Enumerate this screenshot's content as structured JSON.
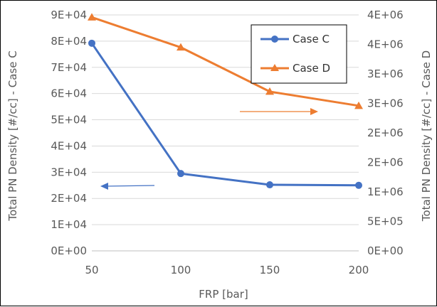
{
  "chart_data": {
    "type": "line",
    "xlabel": "FRP [bar]",
    "ylabel_left": "Total PN Density [#/cc] - Case C",
    "ylabel_right": "Total PN Density [#/cc] - Case D",
    "x": [
      50,
      100,
      150,
      200
    ],
    "x_ticks": [
      "50",
      "100",
      "150",
      "200"
    ],
    "y_left_ticks": [
      "0E+00",
      "1E+04",
      "2E+04",
      "3E+04",
      "4E+04",
      "5E+04",
      "6E+04",
      "7E+04",
      "8E+04",
      "9E+04"
    ],
    "y_right_ticks": [
      "0E+00",
      "5E+05",
      "1E+06",
      "2E+06",
      "2E+06",
      "3E+06",
      "3E+06",
      "4E+06",
      "4E+06"
    ],
    "ylim_left": [
      0,
      90000
    ],
    "ylim_right": [
      0,
      4000000
    ],
    "grid": true,
    "legend_position": "top-right",
    "series": [
      {
        "name": "Case C",
        "axis": "left",
        "color": "#4472C4",
        "marker": "circle",
        "values": [
          79200,
          29500,
          25200,
          25000
        ]
      },
      {
        "name": "Case D",
        "axis": "right",
        "color": "#ED7D31",
        "marker": "triangle",
        "values": [
          3960000,
          3450000,
          2700000,
          2460000
        ]
      }
    ],
    "annotations": [
      {
        "series": "Case C",
        "direction": "left",
        "meaning": "points to left axis"
      },
      {
        "series": "Case D",
        "direction": "right",
        "meaning": "points to right axis"
      }
    ]
  }
}
